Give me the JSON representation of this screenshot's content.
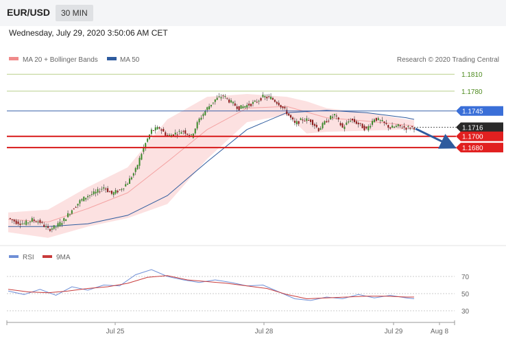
{
  "header": {
    "symbol": "EUR/USD",
    "timeframe": "30 MIN",
    "datetime": "Wednesday, July 29, 2020 3:50:06 AM CET"
  },
  "legend": {
    "items": [
      {
        "label": "MA 20 + Bollinger Bands",
        "color": "#f08a8a"
      },
      {
        "label": "MA 50",
        "color": "#2e5b9e"
      }
    ],
    "credit": "Research © 2020 Trading Central"
  },
  "colors": {
    "up": "#3c8a2b",
    "down": "#8b1a1a",
    "bollinger_fill": "#fbdcdc",
    "ma20": "#f4a3a3",
    "ma50": "#2e5b9e",
    "resistance": "#b8cf8a",
    "support": "#d81a1a",
    "pivot": "#3860a8",
    "rsi": "#6f8fd6",
    "rsi_ma": "#c83a3a",
    "arrow": "#2e5b9e"
  },
  "chart_data": [
    {
      "type": "candlestick",
      "ylim": [
        1.151,
        1.182
      ],
      "x_tick_labels": [
        "Jul 25",
        "Jul 28",
        "Jul 29",
        "Aug 8"
      ],
      "levels": [
        {
          "value": 1.181,
          "label": "1.1810",
          "kind": "resistance"
        },
        {
          "value": 1.178,
          "label": "1.1780",
          "kind": "resistance"
        },
        {
          "value": 1.1745,
          "label": "1.1745",
          "kind": "pivot"
        },
        {
          "value": 1.1716,
          "label": "1.1716",
          "kind": "last"
        },
        {
          "value": 1.17,
          "label": "1.1700",
          "kind": "support"
        },
        {
          "value": 1.168,
          "label": "1.1680",
          "kind": "support"
        }
      ],
      "close_path": [
        [
          0,
          1.1555
        ],
        [
          4,
          1.1548
        ],
        [
          8,
          1.1545
        ],
        [
          12,
          1.1552
        ],
        [
          16,
          1.1548
        ],
        [
          20,
          1.1535
        ],
        [
          24,
          1.154
        ],
        [
          28,
          1.1552
        ],
        [
          32,
          1.157
        ],
        [
          36,
          1.1585
        ],
        [
          40,
          1.1595
        ],
        [
          44,
          1.16
        ],
        [
          48,
          1.161
        ],
        [
          52,
          1.1598
        ],
        [
          56,
          1.1605
        ],
        [
          60,
          1.1618
        ],
        [
          64,
          1.164
        ],
        [
          68,
          1.168
        ],
        [
          72,
          1.171
        ],
        [
          76,
          1.1715
        ],
        [
          80,
          1.17
        ],
        [
          84,
          1.1705
        ],
        [
          88,
          1.171
        ],
        [
          92,
          1.17
        ],
        [
          96,
          1.173
        ],
        [
          100,
          1.175
        ],
        [
          104,
          1.1765
        ],
        [
          108,
          1.1772
        ],
        [
          112,
          1.176
        ],
        [
          116,
          1.175
        ],
        [
          120,
          1.1755
        ],
        [
          124,
          1.176
        ],
        [
          128,
          1.177
        ],
        [
          132,
          1.1768
        ],
        [
          136,
          1.1758
        ],
        [
          140,
          1.1742
        ],
        [
          144,
          1.1722
        ],
        [
          148,
          1.173
        ],
        [
          152,
          1.1728
        ],
        [
          156,
          1.1712
        ],
        [
          160,
          1.1728
        ],
        [
          164,
          1.1738
        ],
        [
          168,
          1.1715
        ],
        [
          172,
          1.173
        ],
        [
          176,
          1.1722
        ],
        [
          180,
          1.1712
        ],
        [
          184,
          1.1732
        ],
        [
          188,
          1.1725
        ],
        [
          192,
          1.1715
        ],
        [
          196,
          1.1718
        ],
        [
          200,
          1.1715
        ],
        [
          204,
          1.1716
        ]
      ],
      "ma20_path": [
        [
          0,
          1.1553
        ],
        [
          20,
          1.1548
        ],
        [
          40,
          1.1572
        ],
        [
          60,
          1.16
        ],
        [
          80,
          1.1655
        ],
        [
          100,
          1.1712
        ],
        [
          120,
          1.175
        ],
        [
          140,
          1.1753
        ],
        [
          160,
          1.1733
        ],
        [
          180,
          1.1727
        ],
        [
          200,
          1.172
        ],
        [
          204,
          1.1718
        ]
      ],
      "ma50_path": [
        [
          0,
          1.154
        ],
        [
          20,
          1.154
        ],
        [
          40,
          1.1545
        ],
        [
          60,
          1.156
        ],
        [
          80,
          1.1595
        ],
        [
          100,
          1.1655
        ],
        [
          120,
          1.1712
        ],
        [
          140,
          1.1742
        ],
        [
          160,
          1.1746
        ],
        [
          180,
          1.1742
        ],
        [
          200,
          1.1733
        ],
        [
          204,
          1.173
        ]
      ],
      "bollinger_band": [
        [
          0,
          1.1565,
          1.153
        ],
        [
          20,
          1.157,
          1.152
        ],
        [
          40,
          1.161,
          1.154
        ],
        [
          60,
          1.1645,
          1.1555
        ],
        [
          80,
          1.173,
          1.158
        ],
        [
          100,
          1.177,
          1.166
        ],
        [
          120,
          1.1775,
          1.1725
        ],
        [
          140,
          1.177,
          1.1738
        ],
        [
          150,
          1.1762,
          1.1705
        ],
        [
          160,
          1.175,
          1.1708
        ],
        [
          180,
          1.1742,
          1.171
        ],
        [
          200,
          1.173,
          1.1712
        ],
        [
          204,
          1.1729,
          1.1713
        ]
      ],
      "forecast_arrow": {
        "from_value": 1.1716,
        "to_value": 1.168
      }
    },
    {
      "type": "line",
      "series": [
        {
          "name": "RSI",
          "values": [
            [
              0,
              53
            ],
            [
              8,
              49
            ],
            [
              16,
              55
            ],
            [
              24,
              48
            ],
            [
              32,
              58
            ],
            [
              40,
              54
            ],
            [
              48,
              60
            ],
            [
              56,
              59
            ],
            [
              64,
              72
            ],
            [
              72,
              78
            ],
            [
              80,
              70
            ],
            [
              88,
              66
            ],
            [
              96,
              63
            ],
            [
              104,
              66
            ],
            [
              112,
              63
            ],
            [
              120,
              59
            ],
            [
              128,
              60
            ],
            [
              136,
              52
            ],
            [
              144,
              44
            ],
            [
              152,
              42
            ],
            [
              160,
              46
            ],
            [
              168,
              44
            ],
            [
              176,
              49
            ],
            [
              184,
              45
            ],
            [
              192,
              48
            ],
            [
              200,
              45
            ],
            [
              204,
              44
            ]
          ]
        },
        {
          "name": "9MA",
          "values": [
            [
              0,
              55
            ],
            [
              10,
              52
            ],
            [
              20,
              51
            ],
            [
              30,
              53
            ],
            [
              40,
              56
            ],
            [
              50,
              58
            ],
            [
              60,
              62
            ],
            [
              70,
              69
            ],
            [
              80,
              71
            ],
            [
              90,
              66
            ],
            [
              100,
              64
            ],
            [
              110,
              62
            ],
            [
              120,
              59
            ],
            [
              130,
              56
            ],
            [
              140,
              49
            ],
            [
              150,
              44
            ],
            [
              160,
              45
            ],
            [
              170,
              46
            ],
            [
              180,
              47
            ],
            [
              190,
              47
            ],
            [
              200,
              46
            ],
            [
              204,
              46
            ]
          ]
        }
      ],
      "ylim": [
        22,
        82
      ],
      "y_ticks": [
        {
          "value": 70,
          "label": "70"
        },
        {
          "value": 50,
          "label": "50"
        },
        {
          "value": 30,
          "label": "30"
        }
      ]
    }
  ]
}
